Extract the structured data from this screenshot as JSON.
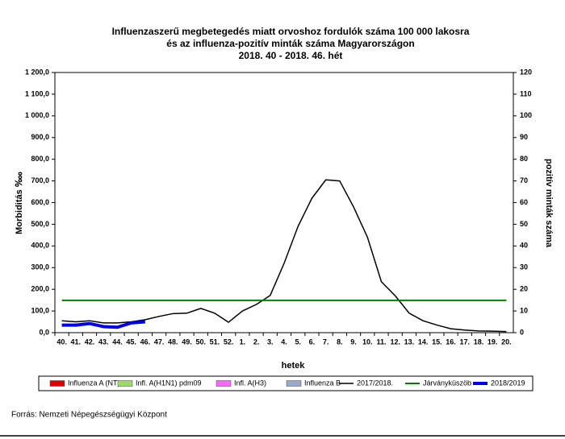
{
  "chart_data": {
    "type": "line",
    "title": [
      "Influenzaszerű megbetegedés miatt orvoshoz fordulók száma 100 000 lakosra",
      "és az influenza-pozitív minták száma Magyarországon",
      "2018. 40 - 2018. 46. hét"
    ],
    "xlabel": "hetek",
    "ylabel": "Morbiditás ‱",
    "y2label": "pozitív minták száma",
    "source": "Forrás: Nemzeti Népegészségügyi Központ",
    "categories": [
      "40.",
      "41.",
      "42.",
      "43.",
      "44.",
      "45.",
      "46.",
      "47.",
      "48.",
      "49.",
      "50.",
      "51.",
      "52.",
      "1.",
      "2.",
      "3.",
      "4.",
      "5.",
      "6.",
      "7.",
      "8.",
      "9.",
      "10.",
      "11.",
      "12.",
      "13.",
      "14.",
      "15.",
      "16.",
      "17.",
      "18.",
      "19.",
      "20."
    ],
    "ylim": [
      0,
      1200
    ],
    "yticks": [
      {
        "value": 0,
        "label": "0,0"
      },
      {
        "value": 100,
        "label": "100,0"
      },
      {
        "value": 200,
        "label": "200,0"
      },
      {
        "value": 300,
        "label": "300,0"
      },
      {
        "value": 400,
        "label": "400,0"
      },
      {
        "value": 500,
        "label": "500,0"
      },
      {
        "value": 600,
        "label": "600,0"
      },
      {
        "value": 700,
        "label": "700,0"
      },
      {
        "value": 800,
        "label": "800,0"
      },
      {
        "value": 900,
        "label": "900,0"
      },
      {
        "value": 1000,
        "label": "1 000,0"
      },
      {
        "value": 1100,
        "label": "1 100,0"
      },
      {
        "value": 1200,
        "label": "1 200,0"
      }
    ],
    "y2lim": [
      0,
      120
    ],
    "y2ticks": [
      0,
      10,
      20,
      30,
      40,
      50,
      60,
      70,
      80,
      90,
      100,
      110,
      120
    ],
    "series": [
      {
        "name": "Influenza A (NT)",
        "type": "bar",
        "axis": "y2",
        "color": "#e00000",
        "values": [
          null,
          null,
          null,
          null,
          null,
          null,
          null,
          null,
          null,
          null,
          null,
          null,
          null,
          null,
          null,
          null,
          null,
          null,
          null,
          null,
          null,
          null,
          null,
          null,
          null,
          null,
          null,
          null,
          null,
          null,
          null,
          null,
          null
        ]
      },
      {
        "name": "Infl. A(H1N1) pdm09",
        "type": "bar",
        "axis": "y2",
        "color": "#99dd66",
        "values": [
          null,
          null,
          null,
          null,
          null,
          null,
          null,
          null,
          null,
          null,
          null,
          null,
          null,
          null,
          null,
          null,
          null,
          null,
          null,
          null,
          null,
          null,
          null,
          null,
          null,
          null,
          null,
          null,
          null,
          null,
          null,
          null,
          null
        ]
      },
      {
        "name": "Infl. A(H3)",
        "type": "bar",
        "axis": "y2",
        "color": "#ff66ff",
        "values": [
          null,
          null,
          null,
          null,
          null,
          null,
          null,
          null,
          null,
          null,
          null,
          null,
          null,
          null,
          null,
          null,
          null,
          null,
          null,
          null,
          null,
          null,
          null,
          null,
          null,
          null,
          null,
          null,
          null,
          null,
          null,
          null,
          null
        ]
      },
      {
        "name": "Influenza B",
        "type": "bar",
        "axis": "y2",
        "color": "#99aacc",
        "values": [
          null,
          null,
          null,
          null,
          null,
          null,
          null,
          null,
          null,
          null,
          null,
          null,
          null,
          null,
          null,
          null,
          null,
          null,
          null,
          null,
          null,
          null,
          null,
          null,
          null,
          null,
          null,
          null,
          null,
          null,
          null,
          null,
          null
        ]
      },
      {
        "name": "2017/2018.",
        "type": "line",
        "color": "#000000",
        "width": 1.5,
        "values": [
          55,
          50,
          55,
          45,
          45,
          50,
          60,
          75,
          88,
          90,
          112,
          90,
          48,
          100,
          130,
          172,
          320,
          490,
          620,
          705,
          700,
          580,
          440,
          235,
          170,
          90,
          55,
          35,
          18,
          12,
          8,
          7,
          5
        ]
      },
      {
        "name": "Járványküszöb",
        "type": "line",
        "color": "#008000",
        "width": 2,
        "values": [
          149,
          149,
          149,
          149,
          149,
          149,
          149,
          149,
          149,
          149,
          149,
          149,
          149,
          149,
          149,
          149,
          149,
          149,
          149,
          149,
          149,
          149,
          149,
          149,
          149,
          149,
          149,
          149,
          149,
          149,
          149,
          149,
          149
        ]
      },
      {
        "name": "2018/2019",
        "type": "line",
        "color": "#0000ee",
        "width": 4,
        "values": [
          35,
          35,
          42,
          28,
          25,
          45,
          50,
          null,
          null,
          null,
          null,
          null,
          null,
          null,
          null,
          null,
          null,
          null,
          null,
          null,
          null,
          null,
          null,
          null,
          null,
          null,
          null,
          null,
          null,
          null,
          null,
          null,
          null
        ]
      }
    ]
  }
}
